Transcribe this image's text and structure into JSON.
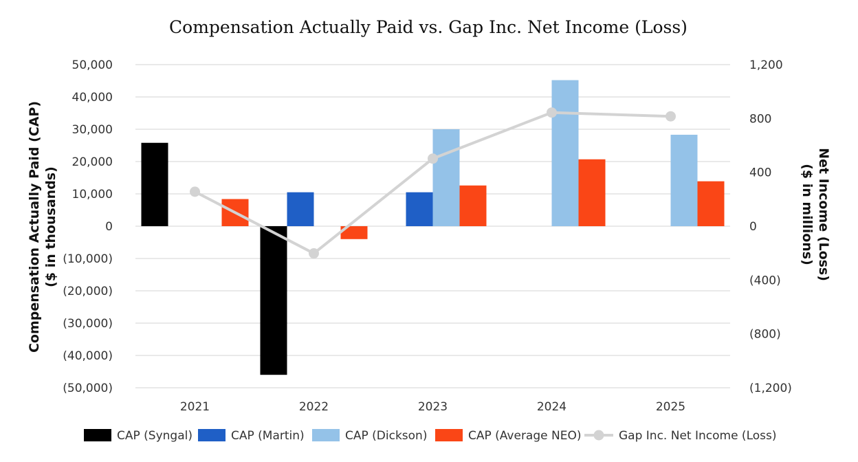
{
  "chart_data": {
    "type": "bar",
    "title": "Compensation Actually Paid vs. Gap Inc. Net Income (Loss)",
    "ylabel": [
      "Compensation Actually Paid (CAP)",
      "($ in thousands)"
    ],
    "y2label": [
      "Net Income (Loss)",
      "($ in millions)"
    ],
    "ylim": [
      -50000,
      50000
    ],
    "y2lim": [
      -1200,
      1200
    ],
    "yticks": [
      "50,000",
      "40,000",
      "30,000",
      "20,000",
      "10,000",
      "0",
      "(10,000)",
      "(20,000)",
      "(30,000)",
      "(40,000)",
      "(50,000)"
    ],
    "y2ticks": [
      "1,200",
      "800",
      "400",
      "0",
      "(400)",
      "(800)",
      "(1,200)"
    ],
    "categories": [
      "2021",
      "2022",
      "2023",
      "2024",
      "2025"
    ],
    "grid": true,
    "legend_position": "bottom",
    "series": [
      {
        "name": "CAP (Syngal)",
        "type": "bar",
        "axis": "left",
        "color": "#000000",
        "values": [
          25800,
          -46000,
          null,
          null,
          null
        ]
      },
      {
        "name": "CAP (Martin)",
        "type": "bar",
        "axis": "left",
        "color": "#1f5fc6",
        "values": [
          null,
          10500,
          10500,
          null,
          null
        ]
      },
      {
        "name": "CAP (Dickson)",
        "type": "bar",
        "axis": "left",
        "color": "#94c2e8",
        "values": [
          null,
          null,
          30000,
          45200,
          28300
        ]
      },
      {
        "name": "CAP (Average NEO)",
        "type": "bar",
        "axis": "left",
        "color": "#fa4616",
        "values": [
          8400,
          -4000,
          12600,
          20700,
          13900
        ]
      },
      {
        "name": "Gap Inc. Net Income (Loss)",
        "type": "line",
        "axis": "right",
        "color": "#d3d3d3",
        "values": [
          256,
          -202,
          502,
          844,
          816
        ]
      }
    ]
  }
}
